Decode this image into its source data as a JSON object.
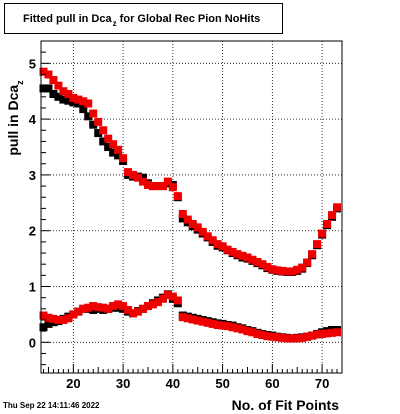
{
  "title": {
    "main": "Fitted pull in Dca",
    "subscript": "z",
    "rest": " for Global Rec Pion NoHits"
  },
  "timestamp": "Thu Sep 22 14:11:46 2022",
  "chart_data": {
    "type": "scatter",
    "xlabel": "No. of Fit Points",
    "ylabel": "pull in Dca",
    "ylabel_subscript": "z",
    "xlim": [
      13.5,
      74
    ],
    "ylim": [
      -0.55,
      5.4
    ],
    "xticks": [
      20,
      30,
      40,
      50,
      60,
      70
    ],
    "yticks": [
      0,
      1,
      2,
      3,
      4,
      5
    ],
    "grid": true,
    "colors": {
      "black_series": "#000000",
      "red_series": "#ee0000"
    },
    "x": [
      14,
      15,
      16,
      17,
      18,
      19,
      20,
      21,
      22,
      23,
      24,
      25,
      26,
      27,
      28,
      29,
      30,
      31,
      32,
      33,
      34,
      35,
      36,
      37,
      38,
      39,
      40,
      41,
      42,
      43,
      44,
      45,
      46,
      47,
      48,
      49,
      50,
      51,
      52,
      53,
      54,
      55,
      56,
      57,
      58,
      59,
      60,
      61,
      62,
      63,
      64,
      65,
      66,
      67,
      68,
      69,
      70,
      71,
      72,
      73
    ],
    "series": [
      {
        "marker": "square",
        "color": "#000000",
        "values": [
          4.55,
          4.55,
          4.45,
          4.4,
          4.35,
          4.33,
          4.3,
          4.28,
          4.18,
          4.05,
          3.9,
          3.75,
          3.6,
          3.5,
          3.4,
          3.35,
          3.25,
          3.0,
          2.97,
          2.97,
          2.95,
          2.85,
          2.8,
          2.8,
          2.8,
          2.85,
          2.82,
          2.6,
          2.22,
          2.15,
          2.08,
          2.02,
          1.95,
          1.88,
          1.8,
          1.73,
          1.7,
          1.65,
          1.6,
          1.56,
          1.52,
          1.5,
          1.46,
          1.42,
          1.38,
          1.33,
          1.3,
          1.28,
          1.27,
          1.26,
          1.26,
          1.28,
          1.32,
          1.42,
          1.56,
          1.74,
          1.93,
          2.1,
          2.25,
          2.4
        ]
      },
      {
        "marker": "square",
        "color": "#ee0000",
        "values": [
          4.85,
          4.8,
          4.7,
          4.6,
          4.5,
          4.45,
          4.38,
          4.35,
          4.32,
          4.28,
          4.1,
          3.95,
          3.8,
          3.65,
          3.55,
          3.45,
          3.3,
          3.05,
          3.0,
          2.95,
          2.88,
          2.82,
          2.8,
          2.8,
          2.8,
          2.88,
          2.78,
          2.62,
          2.3,
          2.2,
          2.12,
          2.06,
          1.98,
          1.9,
          1.83,
          1.76,
          1.72,
          1.66,
          1.62,
          1.58,
          1.55,
          1.52,
          1.48,
          1.44,
          1.4,
          1.35,
          1.31,
          1.29,
          1.28,
          1.27,
          1.27,
          1.3,
          1.34,
          1.43,
          1.58,
          1.76,
          1.95,
          2.12,
          2.28,
          2.42
        ]
      },
      {
        "marker": "square",
        "color": "#000000",
        "values": [
          0.27,
          0.33,
          0.36,
          0.38,
          0.42,
          0.46,
          0.5,
          0.55,
          0.6,
          0.6,
          0.58,
          0.6,
          0.58,
          0.6,
          0.62,
          0.62,
          0.6,
          0.55,
          0.52,
          0.56,
          0.6,
          0.65,
          0.7,
          0.75,
          0.8,
          0.86,
          0.78,
          0.7,
          0.48,
          0.46,
          0.44,
          0.42,
          0.4,
          0.38,
          0.36,
          0.34,
          0.33,
          0.31,
          0.3,
          0.27,
          0.25,
          0.22,
          0.2,
          0.17,
          0.15,
          0.13,
          0.12,
          0.1,
          0.09,
          0.08,
          0.07,
          0.08,
          0.09,
          0.1,
          0.12,
          0.15,
          0.18,
          0.2,
          0.22,
          0.22
        ]
      },
      {
        "marker": "square",
        "color": "#ee0000",
        "values": [
          0.48,
          0.44,
          0.42,
          0.4,
          0.4,
          0.43,
          0.5,
          0.55,
          0.6,
          0.62,
          0.65,
          0.63,
          0.62,
          0.6,
          0.65,
          0.68,
          0.65,
          0.58,
          0.52,
          0.55,
          0.6,
          0.65,
          0.68,
          0.72,
          0.78,
          0.85,
          0.82,
          0.75,
          0.45,
          0.43,
          0.41,
          0.39,
          0.37,
          0.35,
          0.33,
          0.31,
          0.3,
          0.29,
          0.27,
          0.25,
          0.23,
          0.2,
          0.18,
          0.15,
          0.13,
          0.11,
          0.1,
          0.09,
          0.08,
          0.07,
          0.07,
          0.07,
          0.08,
          0.1,
          0.12,
          0.14,
          0.15,
          0.16,
          0.17,
          0.18
        ]
      }
    ]
  }
}
